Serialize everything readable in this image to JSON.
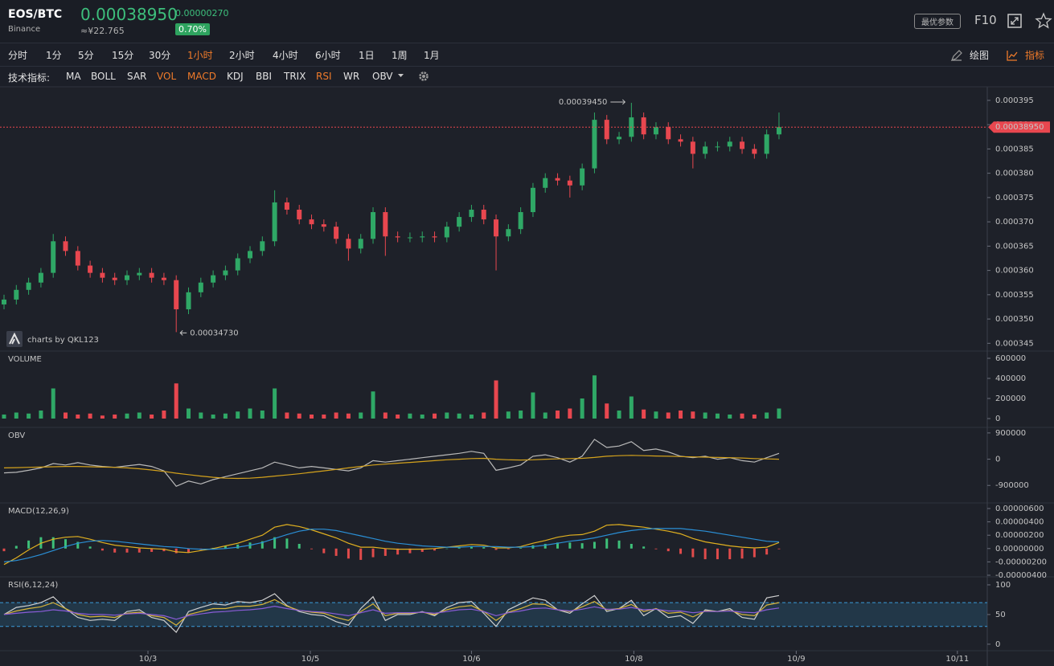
{
  "header": {
    "symbol": "EOS/BTC",
    "exchange": "Binance",
    "price": "0.00038950",
    "cny": "≈¥22.765",
    "change": "0.00000270",
    "change_pct": "0.70%",
    "params_button": "最优参数",
    "f10": "F10"
  },
  "toolbar": {
    "timeframes": [
      "分时",
      "1分",
      "5分",
      "15分",
      "30分",
      "1小时",
      "2小时",
      "4小时",
      "6小时",
      "1日",
      "1周",
      "1月"
    ],
    "active_timeframe": 5,
    "draw_button": "绘图",
    "indicator_button": "指标",
    "indicator_label": "技术指标:",
    "indicators": [
      "MA",
      "BOLL",
      "SAR",
      "VOL",
      "MACD",
      "KDJ",
      "BBI",
      "TRIX",
      "RSI",
      "WR",
      "OBV"
    ],
    "active_indicators": [
      3,
      4,
      8
    ],
    "active_color": "#f07b2a"
  },
  "chart_data": [
    {
      "type": "candlestick",
      "watermark": "charts by QKL123",
      "up_color": "#2fa866",
      "down_color": "#e8474f",
      "xlim": [
        -0.327,
        79.93
      ],
      "xticks": [
        {
          "value": 11.7,
          "label": "10/3"
        },
        {
          "value": 24.9,
          "label": "10/5"
        },
        {
          "value": 38.0,
          "label": "10/6"
        },
        {
          "value": 51.2,
          "label": "10/8"
        },
        {
          "value": 64.4,
          "label": "10/9"
        },
        {
          "value": 77.5,
          "label": "10/11"
        }
      ],
      "ylim": [
        0.0003434,
        0.0003978
      ],
      "yticks": [
        {
          "value": 0.000345,
          "label": "0.000345"
        },
        {
          "value": 0.00035,
          "label": "0.000350"
        },
        {
          "value": 0.000355,
          "label": "0.000355"
        },
        {
          "value": 0.00036,
          "label": "0.000360"
        },
        {
          "value": 0.000365,
          "label": "0.000365"
        },
        {
          "value": 0.00037,
          "label": "0.000370"
        },
        {
          "value": 0.000375,
          "label": "0.000375"
        },
        {
          "value": 0.00038,
          "label": "0.000380"
        },
        {
          "value": 0.000385,
          "label": "0.000385"
        },
        {
          "value": 0.00039,
          "label": "0.000390"
        },
        {
          "value": 0.000395,
          "label": "0.000395"
        }
      ],
      "open": [
        0.000353,
        0.000354,
        0.000356,
        0.0003575,
        0.0003595,
        0.000366,
        0.000364,
        0.000361,
        0.0003595,
        0.0003585,
        0.000358,
        0.000359,
        0.0003595,
        0.0003585,
        0.000358,
        0.000352,
        0.0003555,
        0.0003575,
        0.000359,
        0.00036,
        0.0003625,
        0.000364,
        0.000366,
        0.000374,
        0.0003725,
        0.0003705,
        0.0003695,
        0.000369,
        0.0003665,
        0.0003645,
        0.0003665,
        0.000372,
        0.000367,
        0.0003668,
        0.0003668,
        0.000367,
        0.0003668,
        0.000369,
        0.000371,
        0.0003725,
        0.0003705,
        0.000367,
        0.0003685,
        0.000372,
        0.000377,
        0.000379,
        0.0003785,
        0.0003775,
        0.000381,
        0.000391,
        0.000387,
        0.0003875,
        0.0003915,
        0.000388,
        0.0003895,
        0.000387,
        0.0003865,
        0.000384,
        0.0003855,
        0.0003855,
        0.0003865,
        0.000385,
        0.000384,
        0.000388
      ],
      "high": [
        0.000355,
        0.000357,
        0.0003585,
        0.0003605,
        0.0003675,
        0.000367,
        0.000365,
        0.000362,
        0.0003605,
        0.0003595,
        0.00036,
        0.0003605,
        0.0003605,
        0.0003595,
        0.000359,
        0.0003565,
        0.0003585,
        0.00036,
        0.000361,
        0.0003635,
        0.000365,
        0.000367,
        0.0003765,
        0.000375,
        0.0003735,
        0.0003715,
        0.0003705,
        0.00037,
        0.0003675,
        0.0003675,
        0.000373,
        0.000373,
        0.000368,
        0.0003678,
        0.000368,
        0.000368,
        0.00037,
        0.000372,
        0.0003735,
        0.0003735,
        0.0003715,
        0.0003695,
        0.000373,
        0.000378,
        0.00038,
        0.00038,
        0.0003795,
        0.000382,
        0.0003925,
        0.000392,
        0.0003885,
        0.0003945,
        0.0003925,
        0.0003905,
        0.0003905,
        0.000388,
        0.0003875,
        0.0003865,
        0.0003865,
        0.0003875,
        0.0003875,
        0.000386,
        0.000389,
        0.0003925
      ],
      "low": [
        0.000352,
        0.000353,
        0.000355,
        0.0003565,
        0.0003585,
        0.000363,
        0.00036,
        0.0003585,
        0.0003575,
        0.000357,
        0.000357,
        0.000358,
        0.0003575,
        0.000357,
        0.0003473,
        0.000351,
        0.0003545,
        0.0003565,
        0.000358,
        0.000359,
        0.0003615,
        0.000363,
        0.000365,
        0.0003715,
        0.0003695,
        0.0003685,
        0.000368,
        0.0003655,
        0.000362,
        0.0003635,
        0.0003655,
        0.000363,
        0.0003658,
        0.0003658,
        0.0003658,
        0.0003658,
        0.0003658,
        0.000368,
        0.00037,
        0.0003695,
        0.00036,
        0.000366,
        0.0003675,
        0.000371,
        0.000376,
        0.0003775,
        0.000375,
        0.0003765,
        0.00038,
        0.000386,
        0.000386,
        0.0003865,
        0.000387,
        0.000387,
        0.000386,
        0.0003855,
        0.000381,
        0.000383,
        0.0003845,
        0.0003845,
        0.000384,
        0.000383,
        0.000383,
        0.000387
      ],
      "close": [
        0.000354,
        0.000356,
        0.0003575,
        0.0003595,
        0.000366,
        0.000364,
        0.000361,
        0.0003595,
        0.0003585,
        0.000358,
        0.000359,
        0.0003595,
        0.0003585,
        0.000358,
        0.000352,
        0.0003555,
        0.0003575,
        0.000359,
        0.00036,
        0.0003625,
        0.000364,
        0.000366,
        0.000374,
        0.0003725,
        0.0003705,
        0.0003695,
        0.000369,
        0.0003665,
        0.0003645,
        0.0003665,
        0.000372,
        0.000367,
        0.0003668,
        0.0003668,
        0.000367,
        0.0003668,
        0.000369,
        0.000371,
        0.0003725,
        0.0003705,
        0.000367,
        0.0003685,
        0.000372,
        0.000377,
        0.000379,
        0.0003785,
        0.0003775,
        0.000381,
        0.000391,
        0.000387,
        0.0003875,
        0.0003915,
        0.000388,
        0.0003895,
        0.000387,
        0.0003865,
        0.000384,
        0.0003855,
        0.0003855,
        0.0003865,
        0.000385,
        0.000384,
        0.000388,
        0.0003895
      ],
      "max_label": "0.00039450",
      "min_label": "0.00034730",
      "last_price": 0.0003895,
      "last_price_label": "0.00038950",
      "last_price_color": "#e8474f"
    },
    {
      "type": "bar",
      "title": "VOLUME",
      "ylim": [
        -88000,
        672000
      ],
      "yticks": [
        0,
        200000,
        400000,
        600000
      ],
      "values": [
        40000,
        60000,
        50000,
        80000,
        300000,
        60000,
        40000,
        50000,
        30000,
        40000,
        50000,
        60000,
        40000,
        80000,
        350000,
        100000,
        60000,
        40000,
        50000,
        70000,
        100000,
        80000,
        300000,
        60000,
        50000,
        40000,
        40000,
        60000,
        50000,
        60000,
        270000,
        60000,
        40000,
        50000,
        40000,
        50000,
        60000,
        50000,
        40000,
        60000,
        380000,
        70000,
        80000,
        260000,
        60000,
        80000,
        100000,
        200000,
        430000,
        150000,
        80000,
        220000,
        90000,
        70000,
        60000,
        80000,
        70000,
        60000,
        50000,
        40000,
        50000,
        40000,
        60000,
        100000
      ]
    },
    {
      "type": "line",
      "title": "OBV",
      "ylim": [
        -1500000,
        1090000
      ],
      "yticks": [
        -900000,
        0,
        900000
      ],
      "series": [
        {
          "color": "#b9b9b9",
          "values": [
            -470000,
            -450000,
            -380000,
            -300000,
            -150000,
            -200000,
            -120000,
            -200000,
            -250000,
            -280000,
            -230000,
            -180000,
            -250000,
            -400000,
            -930000,
            -750000,
            -850000,
            -700000,
            -600000,
            -500000,
            -400000,
            -300000,
            -100000,
            -200000,
            -300000,
            -250000,
            -300000,
            -350000,
            -400000,
            -300000,
            -50000,
            -100000,
            -50000,
            0,
            50000,
            100000,
            150000,
            200000,
            270000,
            200000,
            -380000,
            -300000,
            -200000,
            100000,
            150000,
            50000,
            -100000,
            100000,
            680000,
            400000,
            450000,
            600000,
            300000,
            350000,
            250000,
            100000,
            50000,
            100000,
            0,
            50000,
            -50000,
            -100000,
            50000,
            200000
          ]
        },
        {
          "color": "#d4a21c",
          "values": [
            -300000,
            -290000,
            -280000,
            -270000,
            -260000,
            -250000,
            -250000,
            -260000,
            -270000,
            -280000,
            -300000,
            -330000,
            -370000,
            -420000,
            -480000,
            -530000,
            -580000,
            -620000,
            -650000,
            -660000,
            -650000,
            -620000,
            -580000,
            -540000,
            -500000,
            -450000,
            -400000,
            -350000,
            -300000,
            -250000,
            -200000,
            -170000,
            -140000,
            -110000,
            -80000,
            -50000,
            -20000,
            0,
            20000,
            30000,
            0,
            -20000,
            -30000,
            -20000,
            0,
            10000,
            20000,
            30000,
            60000,
            100000,
            120000,
            130000,
            120000,
            110000,
            100000,
            90000,
            80000,
            70000,
            60000,
            50000,
            40000,
            20000,
            10000,
            0
          ]
        }
      ]
    },
    {
      "type": "macd",
      "title": "MACD(12,26,9)",
      "ylim": [
        -4.24e-06,
        6.84e-06
      ],
      "yticks": [
        {
          "value": -4e-06,
          "label": "-0.00000400"
        },
        {
          "value": -2e-06,
          "label": "-0.00000200"
        },
        {
          "value": 0,
          "label": "0.00000000"
        },
        {
          "value": 2e-06,
          "label": "0.00000200"
        },
        {
          "value": 4e-06,
          "label": "0.00000400"
        },
        {
          "value": 6e-06,
          "label": "0.00000600"
        }
      ],
      "up_color": "#3ec07a",
      "down_color": "#e04b4b",
      "histogram": [
        -4e-07,
        4e-07,
        1.2e-06,
        1.7e-06,
        1.7e-06,
        1.4e-06,
        1e-06,
        3e-07,
        -3e-07,
        -6e-07,
        -6e-07,
        -6e-07,
        -5e-07,
        -4e-07,
        -7e-07,
        -6e-07,
        -2e-07,
        1e-07,
        4e-07,
        6e-07,
        9e-07,
        1.1e-06,
        1.7e-06,
        1.5e-06,
        7e-07,
        -1e-07,
        -7e-07,
        -1.1e-06,
        -1.5e-06,
        -1.7e-06,
        -1.3e-06,
        -1.1e-06,
        -9e-07,
        -7e-07,
        -5e-07,
        -3e-07,
        0,
        2e-07,
        3e-07,
        2e-07,
        -2e-07,
        -1e-07,
        1e-07,
        5e-07,
        7e-07,
        9e-07,
        9e-07,
        8e-07,
        1e-06,
        1.5e-06,
        1.2e-06,
        7e-07,
        3e-07,
        -1e-07,
        -4e-07,
        -8e-07,
        -1.3e-06,
        -1.6e-06,
        -1.6e-06,
        -1.6e-06,
        -1.5e-06,
        -1.3e-06,
        -9e-07,
        -1e-07
      ],
      "series": [
        {
          "color": "#e0b020",
          "values": [
            -2.4e-06,
            -1.4e-06,
            -2e-07,
            8e-07,
            1.4e-06,
            1.7e-06,
            1.8e-06,
            1.4e-06,
            9e-07,
            5e-07,
            3e-07,
            1e-07,
            0,
            -1e-07,
            -5e-07,
            -6e-07,
            -3e-07,
            0,
            4e-07,
            8e-07,
            1.4e-06,
            2e-06,
            3.2e-06,
            3.6e-06,
            3.3e-06,
            2.8e-06,
            2.2e-06,
            1.6e-06,
            8e-07,
            2e-07,
            2e-07,
            0,
            -1e-07,
            -1e-07,
            -1e-07,
            0,
            2e-07,
            4e-07,
            6e-07,
            5e-07,
            1e-07,
            1e-07,
            3e-07,
            8e-07,
            1.2e-06,
            1.7e-06,
            2e-06,
            2.1e-06,
            2.6e-06,
            3.5e-06,
            3.6e-06,
            3.4e-06,
            3.2e-06,
            2.9e-06,
            2.6e-06,
            2.2e-06,
            1.5e-06,
            1e-06,
            7e-07,
            4e-07,
            2e-07,
            1e-07,
            2e-07,
            9e-07
          ]
        },
        {
          "color": "#2a8fd6",
          "values": [
            -2e-06,
            -1.8e-06,
            -1.4e-06,
            -9e-07,
            -3e-07,
            3e-07,
            8e-07,
            1.1e-06,
            1.2e-06,
            1.1e-06,
            9e-07,
            7e-07,
            5e-07,
            3e-07,
            2e-07,
            0,
            -1e-07,
            -1e-07,
            0,
            2e-07,
            5e-07,
            9e-07,
            1.5e-06,
            2.1e-06,
            2.6e-06,
            2.9e-06,
            2.9e-06,
            2.7e-06,
            2.3e-06,
            1.9e-06,
            1.5e-06,
            1.1e-06,
            8e-07,
            6e-07,
            4e-07,
            3e-07,
            2e-07,
            2e-07,
            3e-07,
            3e-07,
            3e-07,
            2e-07,
            2e-07,
            3e-07,
            5e-07,
            8e-07,
            1.1e-06,
            1.3e-06,
            1.6e-06,
            2e-06,
            2.4e-06,
            2.7e-06,
            2.9e-06,
            3e-06,
            3e-06,
            3e-06,
            2.8e-06,
            2.6e-06,
            2.3e-06,
            2e-06,
            1.7e-06,
            1.4e-06,
            1.1e-06,
            1e-06
          ]
        }
      ]
    },
    {
      "type": "line",
      "title": "RSI(6,12,24)",
      "ylim": [
        -11,
        113.5
      ],
      "yticks": [
        0,
        50,
        100
      ],
      "band": [
        30,
        70
      ],
      "band_color": "#3a9ad9",
      "series": [
        {
          "color": "#d0d0d0",
          "values": [
            50,
            62,
            65,
            70,
            80,
            60,
            45,
            40,
            42,
            40,
            55,
            58,
            45,
            40,
            20,
            55,
            62,
            68,
            66,
            72,
            70,
            74,
            85,
            65,
            55,
            50,
            48,
            38,
            32,
            60,
            80,
            40,
            50,
            50,
            55,
            48,
            62,
            70,
            72,
            52,
            30,
            58,
            68,
            78,
            74,
            58,
            52,
            68,
            82,
            55,
            60,
            74,
            48,
            60,
            45,
            48,
            35,
            58,
            55,
            60,
            45,
            42,
            78,
            82
          ]
        },
        {
          "color": "#d8b43a",
          "values": [
            50,
            56,
            60,
            63,
            70,
            60,
            50,
            46,
            47,
            45,
            52,
            54,
            48,
            45,
            32,
            50,
            55,
            60,
            60,
            64,
            64,
            67,
            75,
            64,
            57,
            54,
            52,
            45,
            40,
            55,
            68,
            48,
            52,
            52,
            54,
            50,
            58,
            63,
            65,
            55,
            40,
            54,
            60,
            68,
            67,
            58,
            55,
            63,
            72,
            58,
            60,
            67,
            55,
            60,
            52,
            54,
            46,
            56,
            55,
            57,
            50,
            48,
            66,
            70
          ]
        },
        {
          "color": "#8a5cd8",
          "values": [
            50,
            52,
            54,
            55,
            58,
            56,
            52,
            50,
            50,
            49,
            51,
            52,
            50,
            48,
            42,
            48,
            51,
            54,
            55,
            57,
            58,
            60,
            64,
            60,
            57,
            55,
            54,
            51,
            48,
            53,
            58,
            52,
            53,
            53,
            54,
            52,
            55,
            58,
            59,
            55,
            48,
            53,
            56,
            60,
            61,
            58,
            56,
            59,
            63,
            59,
            59,
            62,
            58,
            59,
            56,
            56,
            53,
            55,
            55,
            56,
            54,
            53,
            58,
            61
          ]
        }
      ]
    }
  ]
}
